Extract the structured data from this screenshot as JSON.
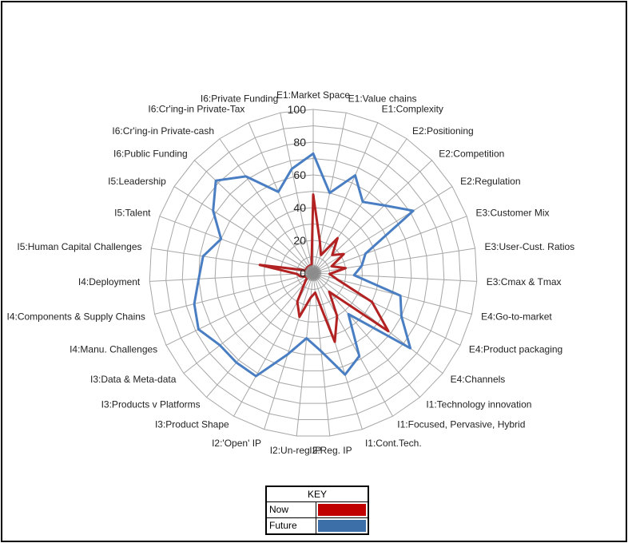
{
  "chart_data": {
    "type": "radar",
    "title": "",
    "axis_ticks": [
      "0",
      "20",
      "40",
      "60",
      "80",
      "100"
    ],
    "rlim": [
      0,
      100
    ],
    "categories": [
      "E1:Market Space",
      "E1:Value chains",
      "E1:Complexity",
      "E2:Positioning",
      "E2:Competition",
      "E2:Regulation",
      "E3:Customer Mix",
      "E3:User-Cust. Ratios",
      "E3:Cmax & Tmax",
      "E4:Go-to-market",
      "E4:Product packaging",
      "E4:Channels",
      "I1:Technology innovation",
      "I1:Focused, Pervasive, Hybrid",
      "I1:Cont.Tech.",
      "I2:Reg. IP",
      "I2:Un-reg IP",
      "I2:'Open' IP",
      "I3:Product Shape",
      "I3:Products v Platforms",
      "I3:Data & Meta-data",
      "I4:Manu. Challenges",
      "I4:Components & Supply Chains",
      "I4:Deployment",
      "I5:Human Capital Challenges",
      "I5:Talent",
      "I5:Leadership",
      "I6:Public Funding",
      "I6:Cr'ing-in Private-cash",
      "I6:Cr'ing-in Private-Tax",
      "I6:Private Funding"
    ],
    "series": [
      {
        "name": "Now",
        "color": "#b22222",
        "values": [
          48,
          20,
          12,
          26,
          16,
          22,
          12,
          20,
          10,
          15,
          40,
          58,
          15,
          30,
          44,
          12,
          15,
          28,
          20,
          8,
          5,
          5,
          8,
          10,
          33,
          5,
          5,
          5,
          5,
          5,
          5
        ]
      },
      {
        "name": "Future",
        "color": "#4a7ec3",
        "values": [
          73,
          50,
          65,
          53,
          60,
          72,
          34,
          30,
          25,
          55,
          60,
          75,
          33,
          58,
          65,
          48,
          40,
          52,
          72,
          72,
          72,
          78,
          75,
          70,
          68,
          60,
          72,
          82,
          72,
          54,
          65
        ]
      }
    ],
    "grid": true
  },
  "key": {
    "title": "KEY",
    "now_label": "Now",
    "future_label": "Future",
    "now_color": "#c00000",
    "future_color": "#3c6ea8"
  }
}
